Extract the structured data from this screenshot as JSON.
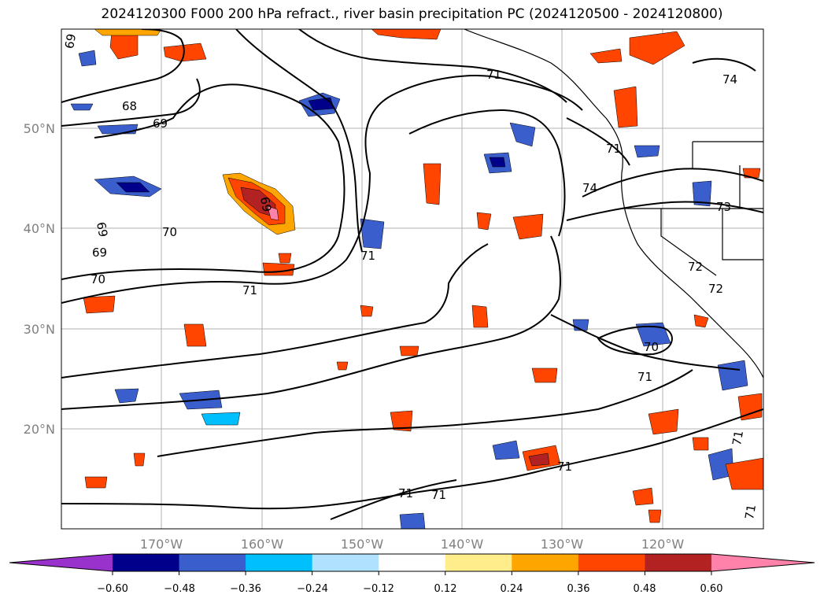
{
  "title": "2024120300 F000 200 hPa refract., river basin precipitation PC (2024120500 - 2024120800)",
  "map": {
    "lat_labels": [
      "50°N",
      "40°N",
      "30°N",
      "20°N"
    ],
    "lon_labels": [
      "170°W",
      "160°W",
      "150°W",
      "140°W",
      "130°W",
      "120°W"
    ],
    "contour_labels": [
      "69",
      "68",
      "69",
      "69",
      "70",
      "69",
      "70",
      "71",
      "69",
      "71",
      "74",
      "71",
      "74",
      "73",
      "72",
      "72",
      "70",
      "71",
      "71",
      "71",
      "71",
      "71",
      "71",
      "71"
    ]
  },
  "colorbar": {
    "ticks": [
      "−0.60",
      "−0.48",
      "−0.36",
      "−0.24",
      "−0.12",
      "0.12",
      "0.24",
      "0.36",
      "0.48",
      "0.60"
    ],
    "colors": [
      "#9932cc",
      "#00008b",
      "#3a5fcd",
      "#00bfff",
      "#b0e2ff",
      "#ffffff",
      "#ffec8b",
      "#ffa500",
      "#ff4500",
      "#b22222",
      "#ff82ab"
    ]
  }
}
